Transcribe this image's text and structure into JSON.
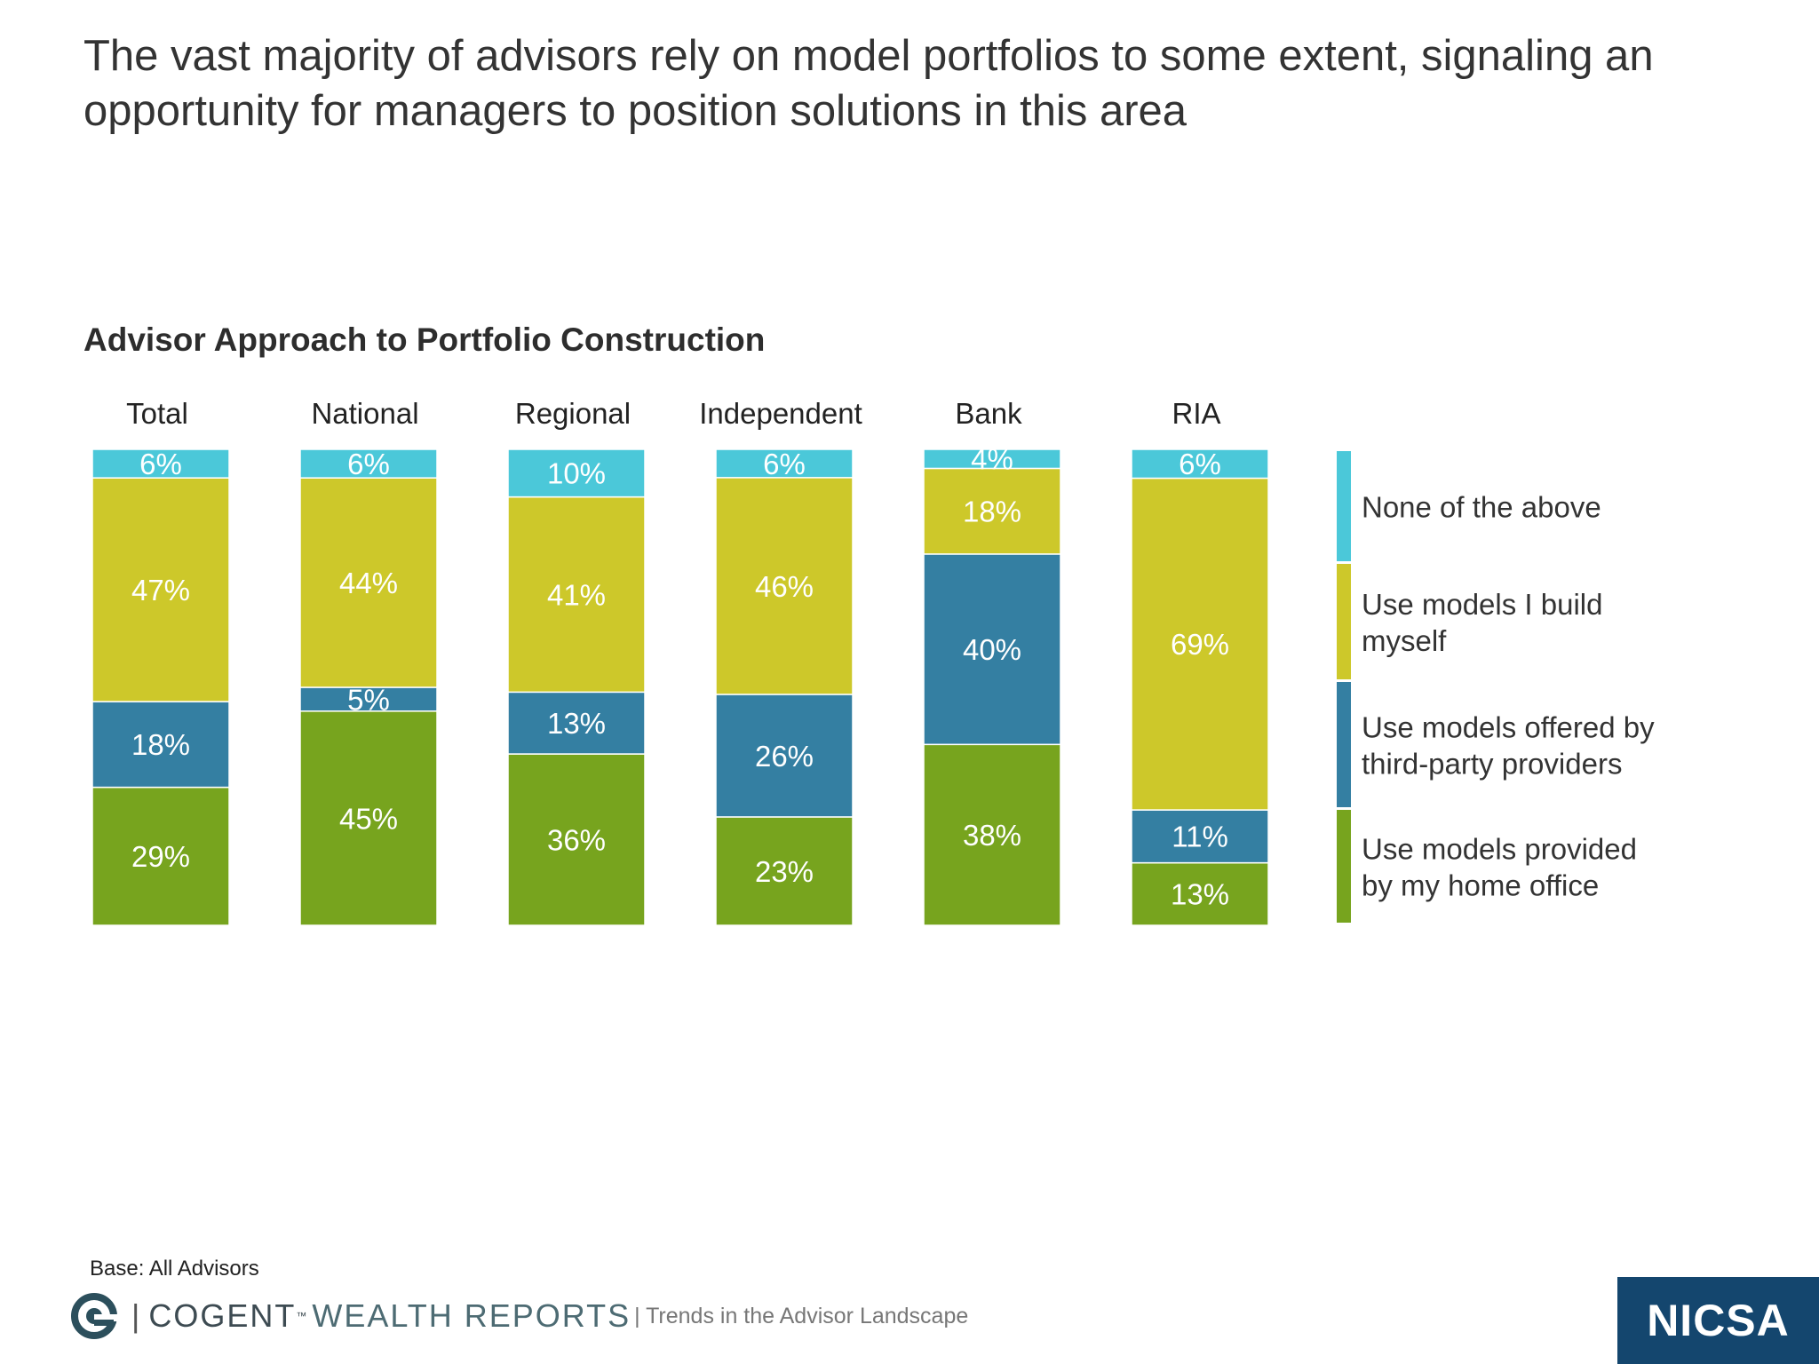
{
  "headline": "The vast majority of advisors rely on model portfolios to some extent, signaling an opportunity for managers to position solutions in this area",
  "chart_data": {
    "type": "bar",
    "stacked": true,
    "percent": true,
    "title": "Advisor Approach to Portfolio Construction",
    "categories": [
      "Total",
      "National",
      "Regional",
      "Independent",
      "Bank",
      "RIA"
    ],
    "series": [
      {
        "name": "Use models provided by my home office",
        "color": "#77a41e",
        "values": [
          29,
          45,
          36,
          23,
          38,
          13
        ],
        "labels": [
          "29%",
          "45%",
          "36%",
          "23%",
          "38%",
          "13%"
        ]
      },
      {
        "name": "Use models offered by third-party providers",
        "color": "#347fa2",
        "values": [
          18,
          5,
          13,
          26,
          40,
          11
        ],
        "labels": [
          "18%",
          "5%",
          "13%",
          "26%",
          "40%",
          "11%"
        ]
      },
      {
        "name": "Use models I build myself",
        "color": "#cdc82a",
        "values": [
          47,
          44,
          41,
          46,
          18,
          69
        ],
        "labels": [
          "47%",
          "44%",
          "41%",
          "46%",
          "18%",
          "69%"
        ]
      },
      {
        "name": "None of the above",
        "color": "#4bc8d9",
        "values": [
          6,
          6,
          10,
          6,
          4,
          6
        ],
        "labels": [
          "6%",
          "6%",
          "10%",
          "6%",
          "4%",
          "6%"
        ]
      }
    ],
    "legend_position": "right",
    "legend_lines": [
      [
        "Use models provided",
        "by my home office"
      ],
      [
        "Use models offered by",
        "third-party providers"
      ],
      [
        "Use models I build",
        "myself"
      ],
      [
        "None of the above"
      ]
    ]
  },
  "footer": {
    "base_note": "Base: All Advisors",
    "brand_separator": "|",
    "brand_name": "COGENT",
    "brand_tm": "™",
    "brand_sub": "WEALTH REPORTS",
    "tagline": "| Trends in the Advisor Landscape",
    "logo_text": "NICSA"
  },
  "icons": {
    "brand_icon": "cogent-swirl-icon"
  },
  "colors": {
    "logo_bg": "#14466e",
    "text": "#333333"
  }
}
